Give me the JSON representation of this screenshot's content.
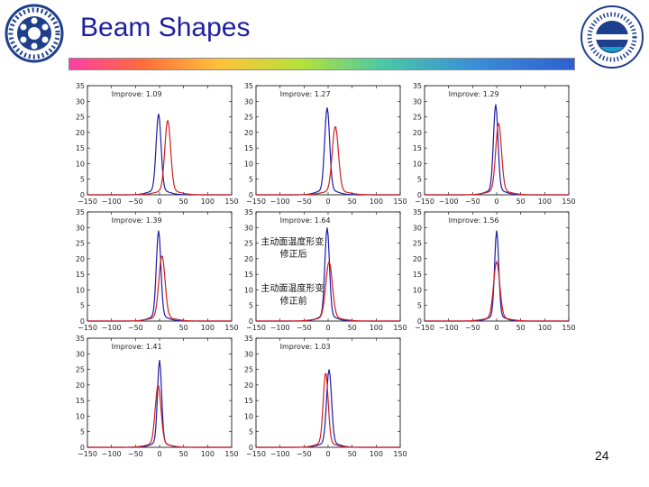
{
  "slide": {
    "title": "Beam Shapes",
    "page_number": "24"
  },
  "colors": {
    "title": "#1f1f9e",
    "series_blue": "#1c1ca8",
    "series_red": "#d02020"
  },
  "chart_data": [
    {
      "type": "line",
      "annotation": "Improve: 1.09",
      "xlim": [
        -150,
        150
      ],
      "ylim": [
        0,
        35
      ],
      "xticks": [
        -150,
        -100,
        -50,
        0,
        50,
        100,
        150
      ],
      "yticks": [
        0,
        5,
        10,
        15,
        20,
        25,
        30,
        35
      ],
      "grid": false,
      "series": [
        {
          "color": "#1c1ca8",
          "peak": 26,
          "center": -2,
          "width": 12
        },
        {
          "color": "#d02020",
          "peak": 24,
          "center": 17,
          "width": 14
        }
      ]
    },
    {
      "type": "line",
      "annotation": "Improve: 1.27",
      "xlim": [
        -150,
        150
      ],
      "ylim": [
        0,
        35
      ],
      "xticks": [
        -150,
        -100,
        -50,
        0,
        50,
        100,
        150
      ],
      "yticks": [
        0,
        5,
        10,
        15,
        20,
        25,
        30,
        35
      ],
      "grid": false,
      "series": [
        {
          "color": "#1c1ca8",
          "peak": 28,
          "center": -2,
          "width": 12
        },
        {
          "color": "#d02020",
          "peak": 22,
          "center": 15,
          "width": 15
        }
      ]
    },
    {
      "type": "line",
      "annotation": "Improve: 1.29",
      "xlim": [
        -150,
        150
      ],
      "ylim": [
        0,
        35
      ],
      "xticks": [
        -150,
        -100,
        -50,
        0,
        50,
        100,
        150
      ],
      "yticks": [
        0,
        5,
        10,
        15,
        20,
        25,
        30,
        35
      ],
      "grid": false,
      "series": [
        {
          "color": "#1c1ca8",
          "peak": 29,
          "center": -2,
          "width": 11
        },
        {
          "color": "#d02020",
          "peak": 23,
          "center": 4,
          "width": 14
        }
      ]
    },
    {
      "type": "line",
      "annotation": "Improve: 1.39",
      "xlim": [
        -150,
        150
      ],
      "ylim": [
        0,
        35
      ],
      "xticks": [
        -150,
        -100,
        -50,
        0,
        50,
        100,
        150
      ],
      "yticks": [
        0,
        5,
        10,
        15,
        20,
        25,
        30,
        35
      ],
      "grid": false,
      "series": [
        {
          "color": "#1c1ca8",
          "peak": 29,
          "center": -2,
          "width": 11
        },
        {
          "color": "#d02020",
          "peak": 21,
          "center": 5,
          "width": 15
        }
      ]
    },
    {
      "type": "line",
      "annotation": "Improve: 1.64",
      "xlim": [
        -150,
        150
      ],
      "ylim": [
        0,
        35
      ],
      "xticks": [
        -150,
        -100,
        -50,
        0,
        50,
        100,
        150
      ],
      "yticks": [
        0,
        5,
        10,
        15,
        20,
        25,
        30,
        35
      ],
      "grid": false,
      "text_annotations": [
        {
          "text": "主动面温度形变",
          "x": -140,
          "y": 24.5
        },
        {
          "text": "修正后",
          "x": -100,
          "y": 20.5
        },
        {
          "text": "主动面温度形变",
          "x": -140,
          "y": 9.5
        },
        {
          "text": "修正前",
          "x": -100,
          "y": 5.5
        }
      ],
      "series": [
        {
          "color": "#1c1ca8",
          "peak": 30,
          "center": -2,
          "width": 11
        },
        {
          "color": "#d02020",
          "peak": 19,
          "center": 2,
          "width": 16
        }
      ]
    },
    {
      "type": "line",
      "annotation": "Improve: 1.56",
      "xlim": [
        -150,
        150
      ],
      "ylim": [
        0,
        35
      ],
      "xticks": [
        -150,
        -100,
        -50,
        0,
        50,
        100,
        150
      ],
      "yticks": [
        0,
        5,
        10,
        15,
        20,
        25,
        30,
        35
      ],
      "grid": false,
      "series": [
        {
          "color": "#1c1ca8",
          "peak": 29,
          "center": 0,
          "width": 10
        },
        {
          "color": "#d02020",
          "peak": 19,
          "center": 0,
          "width": 15
        }
      ]
    },
    {
      "type": "line",
      "annotation": "Improve: 1.41",
      "xlim": [
        -150,
        150
      ],
      "ylim": [
        0,
        35
      ],
      "xticks": [
        -150,
        -100,
        -50,
        0,
        50,
        100,
        150
      ],
      "yticks": [
        0,
        5,
        10,
        15,
        20,
        25,
        30,
        35
      ],
      "grid": false,
      "series": [
        {
          "color": "#1c1ca8",
          "peak": 28,
          "center": 0,
          "width": 10
        },
        {
          "color": "#d02020",
          "peak": 20,
          "center": -3,
          "width": 14
        }
      ]
    },
    {
      "type": "line",
      "annotation": "Improve: 1.03",
      "xlim": [
        -150,
        150
      ],
      "ylim": [
        0,
        35
      ],
      "xticks": [
        -150,
        -100,
        -50,
        0,
        50,
        100,
        150
      ],
      "yticks": [
        0,
        5,
        10,
        15,
        20,
        25,
        30,
        35
      ],
      "grid": false,
      "series": [
        {
          "color": "#1c1ca8",
          "peak": 25,
          "center": 2,
          "width": 12
        },
        {
          "color": "#d02020",
          "peak": 24,
          "center": -5,
          "width": 12
        }
      ]
    }
  ]
}
